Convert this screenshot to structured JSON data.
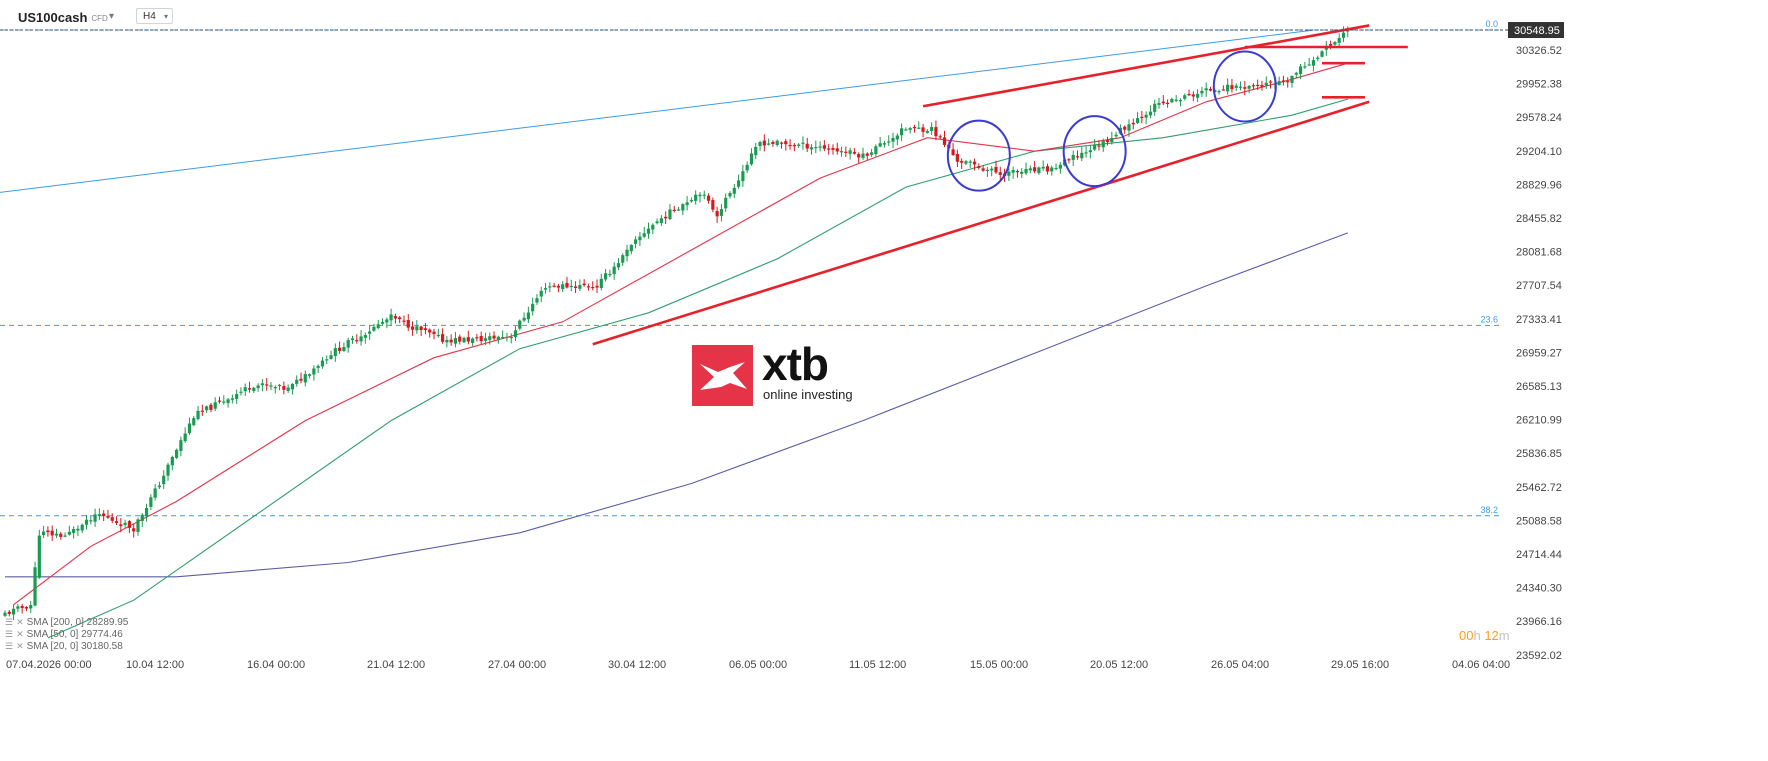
{
  "header": {
    "symbol": "US100cash",
    "instrument_type": "CFD",
    "timeframe": "H4"
  },
  "timer": {
    "hours": "00",
    "h_unit": "h",
    "minutes": "12",
    "m_unit": "m"
  },
  "logo": {
    "word": "xtb",
    "tagline": "online investing"
  },
  "indicators": [
    {
      "label": "SMA [200, 0] 28289.95",
      "color": "#5b5ea6"
    },
    {
      "label": "SMA [50, 0] 29774.46",
      "color": "#2e9e6b"
    },
    {
      "label": "SMA [20, 0] 30180.58",
      "color": "#e53347"
    }
  ],
  "colors": {
    "up": "#1a9b52",
    "down": "#d6191e",
    "trend": "#e8202a",
    "circle": "#3a3bd0",
    "fib": "#3d9be9",
    "price_tag": "#333333"
  },
  "chart_data": {
    "type": "candlestick",
    "y_axis_side": "right",
    "ylim": [
      23500,
      30700
    ],
    "y_ticks": [
      30326.52,
      29952.38,
      29578.24,
      29204.1,
      28829.96,
      28455.82,
      28081.68,
      27707.54,
      27333.41,
      26959.27,
      26585.13,
      26210.99,
      25836.85,
      25462.72,
      25088.58,
      24714.44,
      24340.3,
      23966.16,
      23592.02
    ],
    "y_tick_labels": [
      "30326.52",
      "29952.38",
      "29578.24",
      "29204.10",
      "28829.96",
      "28455.82",
      "28081.68",
      "27707.54",
      "27333.41",
      "26959.27",
      "26585.13",
      "26210.99",
      "25836.85",
      "25462.72",
      "25088.58",
      "24714.44",
      "24340.30",
      "23966.16",
      "23592.02"
    ],
    "x_tick_labels": [
      "07.04.2026 00:00",
      "10.04 12:00",
      "16.04 00:00",
      "21.04 12:00",
      "27.04 00:00",
      "30.04 12:00",
      "06.05 00:00",
      "11.05 12:00",
      "15.05 00:00",
      "20.05 12:00",
      "26.05 04:00",
      "29.05 16:00",
      "04.06 04:00"
    ],
    "current_price": "30548.95",
    "current_price_value": 30548.95,
    "fib_levels": [
      {
        "label": "0.0",
        "value": 30548.95
      },
      {
        "label": "23.6",
        "value": 27260
      },
      {
        "label": "38.2",
        "value": 25140
      }
    ],
    "anchors": [
      {
        "i": 0,
        "c": 24050
      },
      {
        "i": 6,
        "c": 24150
      },
      {
        "i": 8,
        "c": 24950
      },
      {
        "i": 14,
        "c": 24920
      },
      {
        "i": 22,
        "c": 25150
      },
      {
        "i": 30,
        "c": 25000
      },
      {
        "i": 36,
        "c": 25500
      },
      {
        "i": 44,
        "c": 26250
      },
      {
        "i": 58,
        "c": 26600
      },
      {
        "i": 66,
        "c": 26550
      },
      {
        "i": 76,
        "c": 26950
      },
      {
        "i": 90,
        "c": 27350
      },
      {
        "i": 102,
        "c": 27100
      },
      {
        "i": 110,
        "c": 27100
      },
      {
        "i": 118,
        "c": 27150
      },
      {
        "i": 126,
        "c": 27700
      },
      {
        "i": 138,
        "c": 27700
      },
      {
        "i": 150,
        "c": 28350
      },
      {
        "i": 162,
        "c": 28750
      },
      {
        "i": 166,
        "c": 28500
      },
      {
        "i": 176,
        "c": 29300
      },
      {
        "i": 190,
        "c": 29250
      },
      {
        "i": 200,
        "c": 29150
      },
      {
        "i": 210,
        "c": 29450
      },
      {
        "i": 216,
        "c": 29450
      },
      {
        "i": 222,
        "c": 29100
      },
      {
        "i": 232,
        "c": 28950
      },
      {
        "i": 244,
        "c": 29000
      },
      {
        "i": 256,
        "c": 29300
      },
      {
        "i": 268,
        "c": 29700
      },
      {
        "i": 282,
        "c": 29900
      },
      {
        "i": 298,
        "c": 29950
      },
      {
        "i": 308,
        "c": 30350
      },
      {
        "i": 313,
        "c": 30548
      }
    ],
    "sma20_pts": [
      [
        2,
        24150
      ],
      [
        20,
        24800
      ],
      [
        40,
        25300
      ],
      [
        70,
        26200
      ],
      [
        100,
        26900
      ],
      [
        130,
        27300
      ],
      [
        160,
        28100
      ],
      [
        190,
        28900
      ],
      [
        215,
        29350
      ],
      [
        240,
        29200
      ],
      [
        260,
        29350
      ],
      [
        280,
        29750
      ],
      [
        300,
        30000
      ],
      [
        313,
        30180
      ]
    ],
    "sma50_pts": [
      [
        10,
        23780
      ],
      [
        30,
        24200
      ],
      [
        60,
        25200
      ],
      [
        90,
        26200
      ],
      [
        120,
        27000
      ],
      [
        150,
        27400
      ],
      [
        180,
        28000
      ],
      [
        210,
        28800
      ],
      [
        240,
        29200
      ],
      [
        270,
        29350
      ],
      [
        300,
        29600
      ],
      [
        313,
        29780
      ]
    ],
    "sma200_pts": [
      [
        0,
        24460
      ],
      [
        40,
        24460
      ],
      [
        80,
        24620
      ],
      [
        120,
        24950
      ],
      [
        160,
        25500
      ],
      [
        200,
        26200
      ],
      [
        240,
        26950
      ],
      [
        280,
        27700
      ],
      [
        313,
        28290
      ]
    ],
    "trendlines": [
      {
        "type": "upper",
        "i0": 214,
        "v0": 29700,
        "i1": 318,
        "v1": 30600
      },
      {
        "type": "lower",
        "i0": 137,
        "v0": 27050,
        "i1": 318,
        "v1": 29750
      },
      {
        "type": "fib_ray",
        "i0": -3,
        "v0": 28730,
        "i1": 305,
        "v1": 30548
      }
    ],
    "levels": [
      {
        "i0": 289,
        "i1": 327,
        "v": 30360
      },
      {
        "i0": 307,
        "i1": 317,
        "v": 30180
      },
      {
        "i0": 307,
        "i1": 317,
        "v": 29800
      }
    ],
    "circles": [
      {
        "i": 227,
        "v": 29150
      },
      {
        "i": 254,
        "v": 29200
      },
      {
        "i": 289,
        "v": 29920
      }
    ]
  }
}
